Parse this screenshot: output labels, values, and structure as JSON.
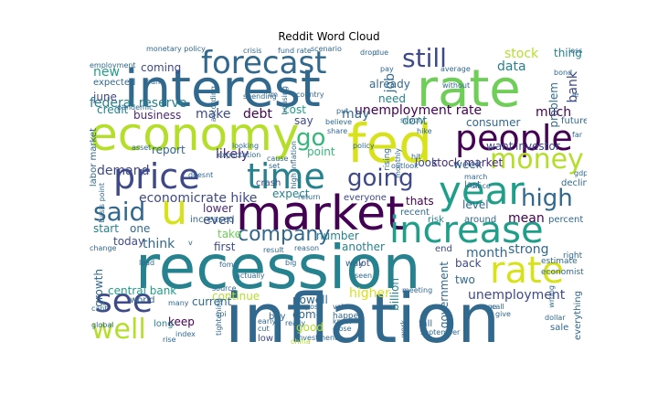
{
  "title": "Reddit Word Cloud",
  "words": {
    "interest": "interest",
    "rate": "rate",
    "recession": "recession",
    "inflation": "inflation",
    "fed": "fed",
    "market": "market",
    "economy": "economy",
    "year": "year",
    "people": "people",
    "increase": "increase",
    "price": "price",
    "time": "time",
    "forecast": "forecast",
    "money": "money",
    "u": "u",
    "see": "see",
    "well": "well",
    "said": "said",
    "still": "still",
    "company": "company",
    "going": "going",
    "high": "high",
    "go": "go",
    "rate2": "rate",
    "federal_reserve": "federal reserve",
    "unemployment_rate": "unemployment rate",
    "make": "make",
    "debt": "debt",
    "business": "business",
    "stock": "stock",
    "data": "data",
    "new": "new",
    "coming": "coming",
    "much": "much",
    "bank": "bank",
    "thing": "thing",
    "job": "job",
    "already": "already",
    "need": "need",
    "may": "may",
    "say": "say",
    "consumer": "consumer",
    "want": "want",
    "investor": "investor",
    "stock_market": "stock market",
    "week": "week",
    "look": "look",
    "economicrate_hike": "economicrate hike",
    "demand": "demand",
    "likely": "likely",
    "report": "report",
    "expect": "expect",
    "point": "point",
    "thats": "thats",
    "level": "level",
    "mean": "mean",
    "even": "even",
    "lower": "lower",
    "think": "think",
    "take": "take",
    "first": "first",
    "number": "number",
    "another": "another",
    "month": "month",
    "strong": "strong",
    "higher": "higher",
    "back": "back",
    "two": "two",
    "continue": "continue",
    "come": "come",
    "good": "good",
    "current": "current",
    "keep": "keep",
    "unemployment": "unemployment",
    "growth": "growth",
    "central_bank": "central bank",
    "start": "start",
    "one": "one",
    "today": "today",
    "billion": "billion",
    "government": "government",
    "powell": "powell",
    "credit": "credit",
    "june": "june",
    "expected": "expected",
    "labor_market": "labor market",
    "cost": "cost",
    "going2": "going",
    "dont": "dont",
    "problem": "problem",
    "world": "world",
    "long": "long",
    "low": "low",
    "way": "way",
    "lot": "lot",
    "end": "end",
    "case": "case",
    "increased": "increased",
    "recent": "recent",
    "risk": "risk",
    "around": "around",
    "percent": "percent",
    "crash": "crash",
    "everyone": "everyone",
    "buy": "buy",
    "fall": "fall",
    "sale": "sale",
    "everything": "everything",
    "future": "future",
    "decline": "decline",
    "last": "last",
    "estimate": "estimate",
    "economist": "economist",
    "right": "right",
    "monetary_policy": "monetary policy",
    "employment": "employment",
    "loan": "loan",
    "fund_rate": "fund rate",
    "scenario": "scenario",
    "crisis": "crisis",
    "average": "average",
    "hike": "hike",
    "supply": "supply",
    "policy": "policy",
    "asset": "asset",
    "gdp": "gdp",
    "dollar": "dollar",
    "index": "index",
    "rise": "rise",
    "global": "global",
    "sept": "september",
    "actually": "actually",
    "result": "result",
    "reason": "reason",
    "fomc": "fomc",
    "source": "source",
    "really": "really",
    "happen": "happen",
    "close": "close",
    "value": "value",
    "early": "early",
    "cut": "cut",
    "post": "post",
    "know": "know",
    "share": "share",
    "believe": "believe",
    "put": "put",
    "pandemic": "pandemic",
    "spending": "spending",
    "housing": "housing",
    "country": "country",
    "investment": "investment",
    "hit": "hit",
    "cause": "cause",
    "set": "set",
    "bond": "bond",
    "loss": "loss",
    "without": "without",
    "march": "march",
    "since": "since",
    "call": "call",
    "give": "give",
    "wage": "wage",
    "many": "many",
    "change": "change",
    "cant": "cant",
    "meeting": "meeting",
    "outlook": "outlook",
    "due": "due",
    "drop": "drop",
    "return": "return",
    "looking": "looking",
    "according": "according",
    "tightening": "tightening",
    "china": "china",
    "big": "big",
    "seen": "seen",
    "high_inflation": "high inflation",
    "lead": "lead",
    "expectation": "expectation",
    "basis_point": "basis point",
    "doesnt": "doesnt",
    "rising": "rising",
    "monthly": "monthly",
    "work": "work",
    "im": "im",
    "v": "v",
    "ie": "ie",
    "cpi": "cpi",
    "far": "far",
    "wrong": "wrong",
    "pay": "pay"
  },
  "palette": {
    "dark_purple": "#440154",
    "purple": "#482878",
    "indigo": "#3e4989",
    "blue": "#31688e",
    "teal": "#26828e",
    "teal_green": "#1f9e89",
    "green": "#35b779",
    "light_green": "#6ece58",
    "lime": "#b5de2b",
    "yellow": "#d8e219"
  }
}
